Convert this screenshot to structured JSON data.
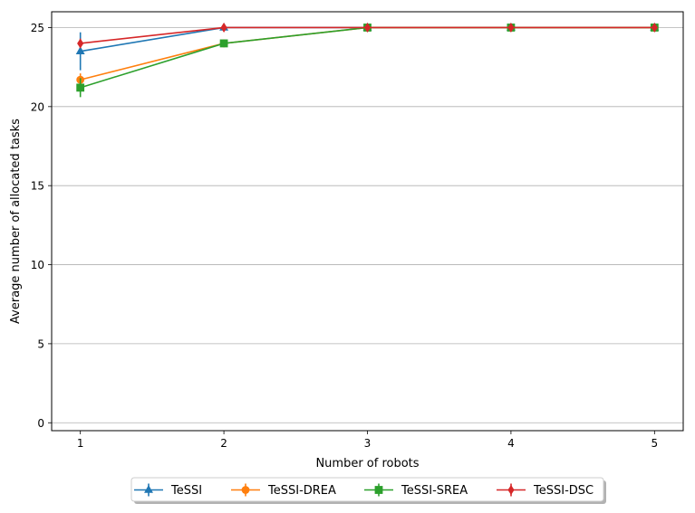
{
  "chart_data": {
    "type": "line",
    "xlabel": "Number of robots",
    "ylabel": "Average number of allocated tasks",
    "x": [
      1,
      2,
      3,
      4,
      5
    ],
    "xticks": [
      "1",
      "2",
      "3",
      "4",
      "5"
    ],
    "yticks": [
      "0",
      "5",
      "10",
      "15",
      "20",
      "25"
    ],
    "xlim": [
      0.8,
      5.2
    ],
    "ylim": [
      -0.5,
      26
    ],
    "grid": "horizontal",
    "legend_position": "bottom-center",
    "series": [
      {
        "name": "TeSSI",
        "color": "#1f77b4",
        "marker": "triangle",
        "values": [
          23.5,
          25,
          25,
          25,
          25
        ],
        "errors": [
          1.2,
          0.15,
          0.15,
          0.15,
          0.15
        ]
      },
      {
        "name": "TeSSI-DREA",
        "color": "#ff7f0e",
        "marker": "circle",
        "values": [
          21.7,
          24,
          25,
          25,
          25
        ],
        "errors": [
          0.4,
          0.1,
          0.1,
          0.1,
          0.1
        ]
      },
      {
        "name": "TeSSI-SREA",
        "color": "#2ca02c",
        "marker": "square",
        "values": [
          21.2,
          24,
          25,
          25,
          25
        ],
        "errors": [
          0.6,
          0.1,
          0.1,
          0.1,
          0.1
        ]
      },
      {
        "name": "TeSSI-DSC",
        "color": "#d62728",
        "marker": "diamond",
        "values": [
          24,
          25,
          25,
          25,
          25
        ],
        "errors": [
          0.3,
          0.1,
          0.1,
          0.1,
          0.1
        ]
      }
    ]
  }
}
